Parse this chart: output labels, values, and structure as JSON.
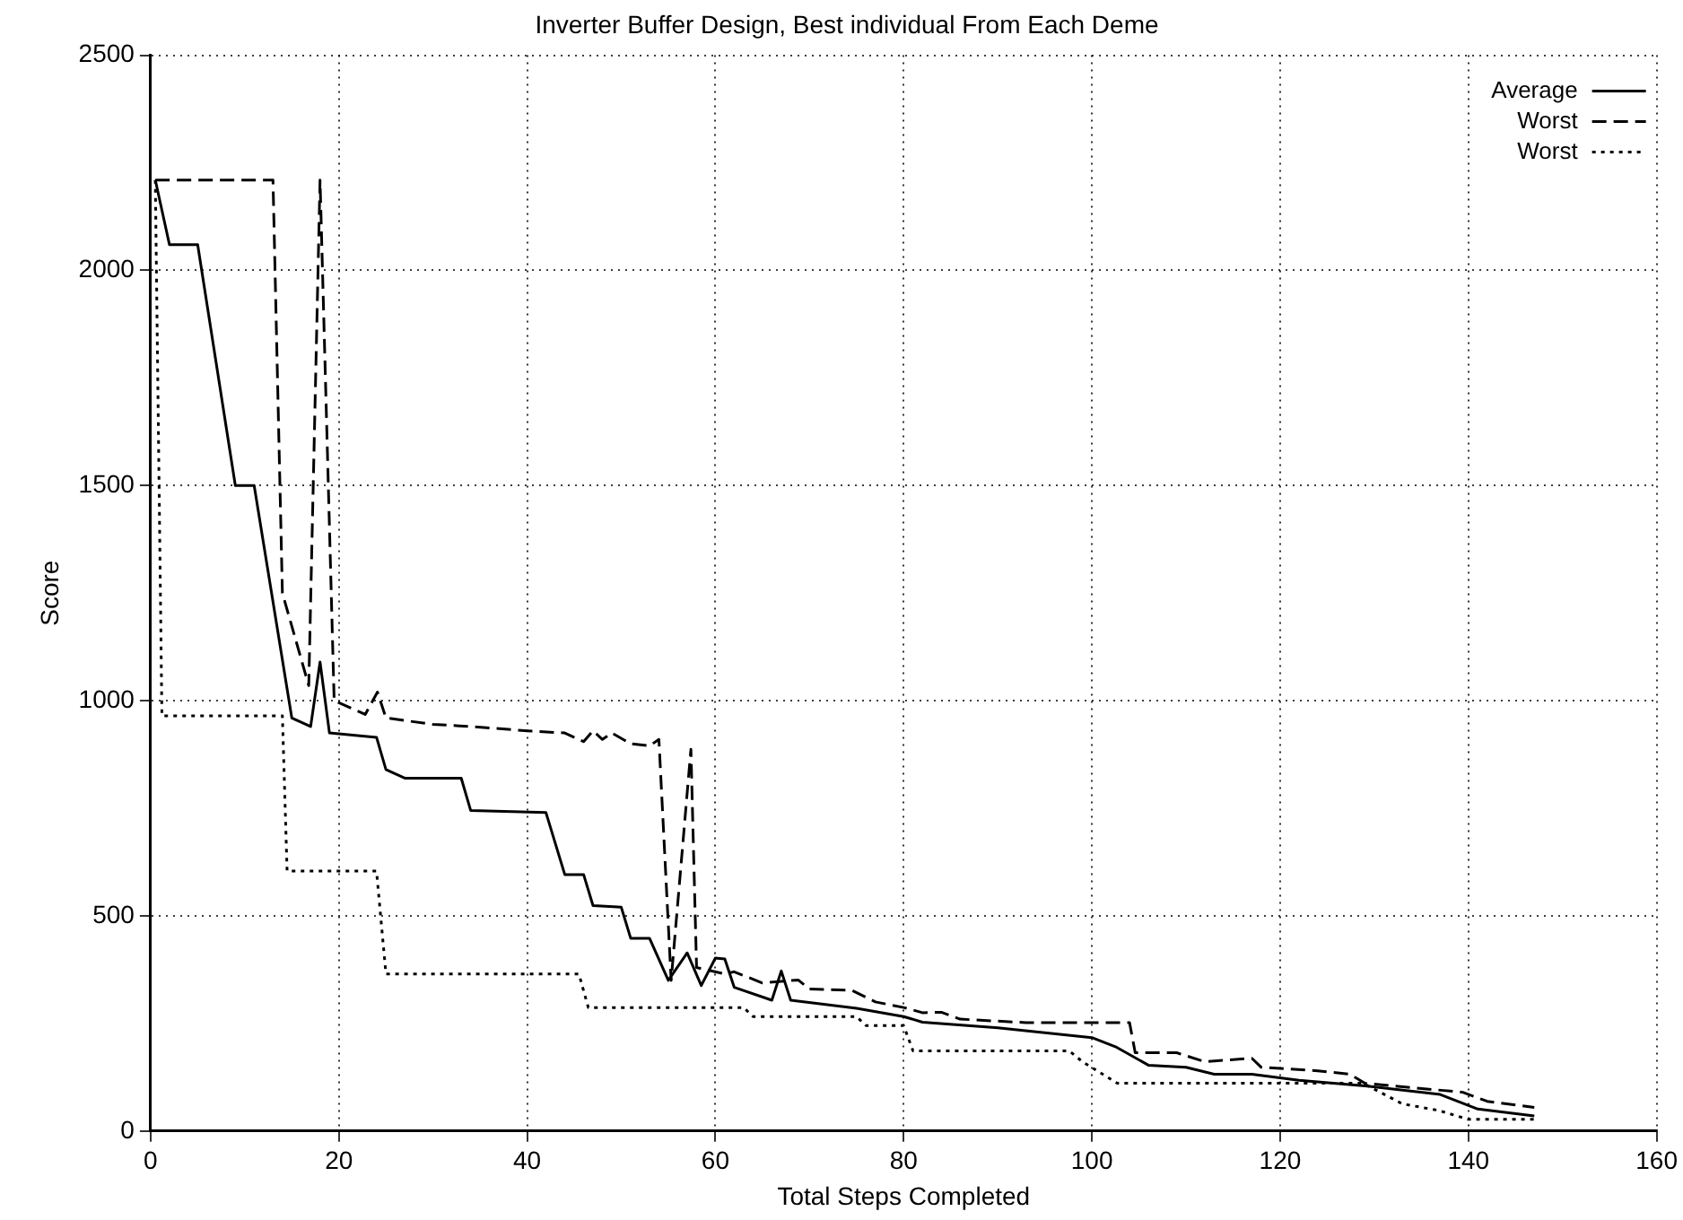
{
  "chart_data": {
    "type": "line",
    "title": "Inverter Buffer Design, Best individual From Each Deme",
    "xlabel": "Total Steps Completed",
    "ylabel": "Score",
    "xlim": [
      0,
      160
    ],
    "xticks": [
      0,
      20,
      40,
      60,
      80,
      100,
      120,
      140,
      160
    ],
    "ylim": [
      0,
      2500
    ],
    "yticks": [
      0,
      500,
      1000,
      1500,
      2000,
      2500
    ],
    "grid": true,
    "legend": "top right",
    "marker": "none",
    "series": [
      {
        "name": "Average",
        "color": "#000000",
        "line_style": "solid",
        "x": [
          0.5,
          2,
          5,
          9,
          11,
          15,
          17,
          18,
          19,
          24,
          25,
          27,
          33,
          34,
          42,
          44,
          46,
          47,
          50,
          51,
          53,
          55,
          57,
          58.5,
          60,
          61,
          62,
          66,
          67,
          68,
          75,
          80,
          82,
          90,
          100,
          102.5,
          106,
          110,
          113,
          117,
          122,
          129,
          137,
          141,
          147
        ],
        "values": [
          2210,
          2060,
          2060,
          1500,
          1500,
          960,
          940,
          1090,
          925,
          915,
          840,
          820,
          820,
          745,
          740,
          596,
          596,
          524,
          520,
          448,
          448,
          350,
          414,
          338,
          402,
          400,
          334,
          304,
          372,
          304,
          285,
          266,
          253,
          240,
          217,
          196,
          153,
          148,
          132,
          132,
          118,
          105,
          85,
          51,
          35
        ]
      },
      {
        "name": "Worst",
        "color": "#000000",
        "line_style": "dashed",
        "x": [
          0.5,
          13,
          14,
          16.8,
          18,
          19.5,
          22.8,
          24.1,
          25,
          30,
          34,
          40,
          44,
          46,
          47,
          48,
          49,
          51,
          53,
          54,
          55.3,
          57.4,
          58,
          61,
          62,
          65,
          68.8,
          70,
          74.5,
          77,
          80,
          82,
          84,
          86,
          93,
          104,
          104.6,
          109,
          112,
          117,
          118,
          124,
          127.4,
          129,
          139.4,
          142,
          147
        ],
        "values": [
          2210,
          2210,
          1250,
          1035,
          2210,
          1000,
          968,
          1020,
          960,
          945,
          940,
          930,
          925,
          905,
          930,
          910,
          925,
          900,
          895,
          910,
          350,
          887,
          380,
          365,
          370,
          344,
          351,
          330,
          327,
          300,
          287,
          275,
          276,
          260,
          252,
          252,
          182,
          182,
          161,
          169,
          148,
          140,
          132,
          111,
          90,
          69,
          55
        ]
      },
      {
        "name": "Worst",
        "color": "#000000",
        "line_style": "dotted",
        "x": [
          0.5,
          1.2,
          14,
          14.5,
          24,
          25,
          45.5,
          46.5,
          63,
          64,
          75,
          76,
          80,
          81,
          97.6,
          99,
          102.7,
          128.8,
          133,
          136.8,
          140,
          147
        ],
        "values": [
          2210,
          965,
          965,
          604,
          604,
          365,
          365,
          287,
          287,
          266,
          266,
          245,
          245,
          186,
          186,
          161,
          111,
          111,
          63,
          48,
          27,
          27
        ]
      }
    ]
  }
}
